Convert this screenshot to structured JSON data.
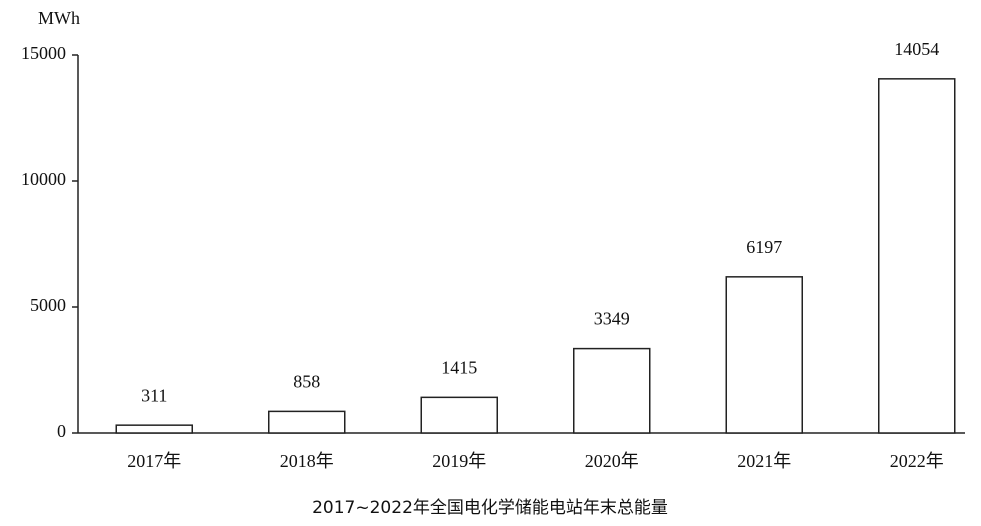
{
  "chart_data": {
    "type": "bar",
    "title": "2017~2022年全国电化学储能电站年末总能量",
    "y_axis_label": "MWh",
    "categories": [
      "2017年",
      "2018年",
      "2019年",
      "2020年",
      "2021年",
      "2022年"
    ],
    "values": [
      311,
      858,
      1415,
      3349,
      6197,
      14054
    ],
    "color": "#ffffff",
    "ylim": [
      0,
      15000
    ],
    "yticks": [
      0,
      5000,
      10000,
      15000
    ],
    "grid": false
  }
}
